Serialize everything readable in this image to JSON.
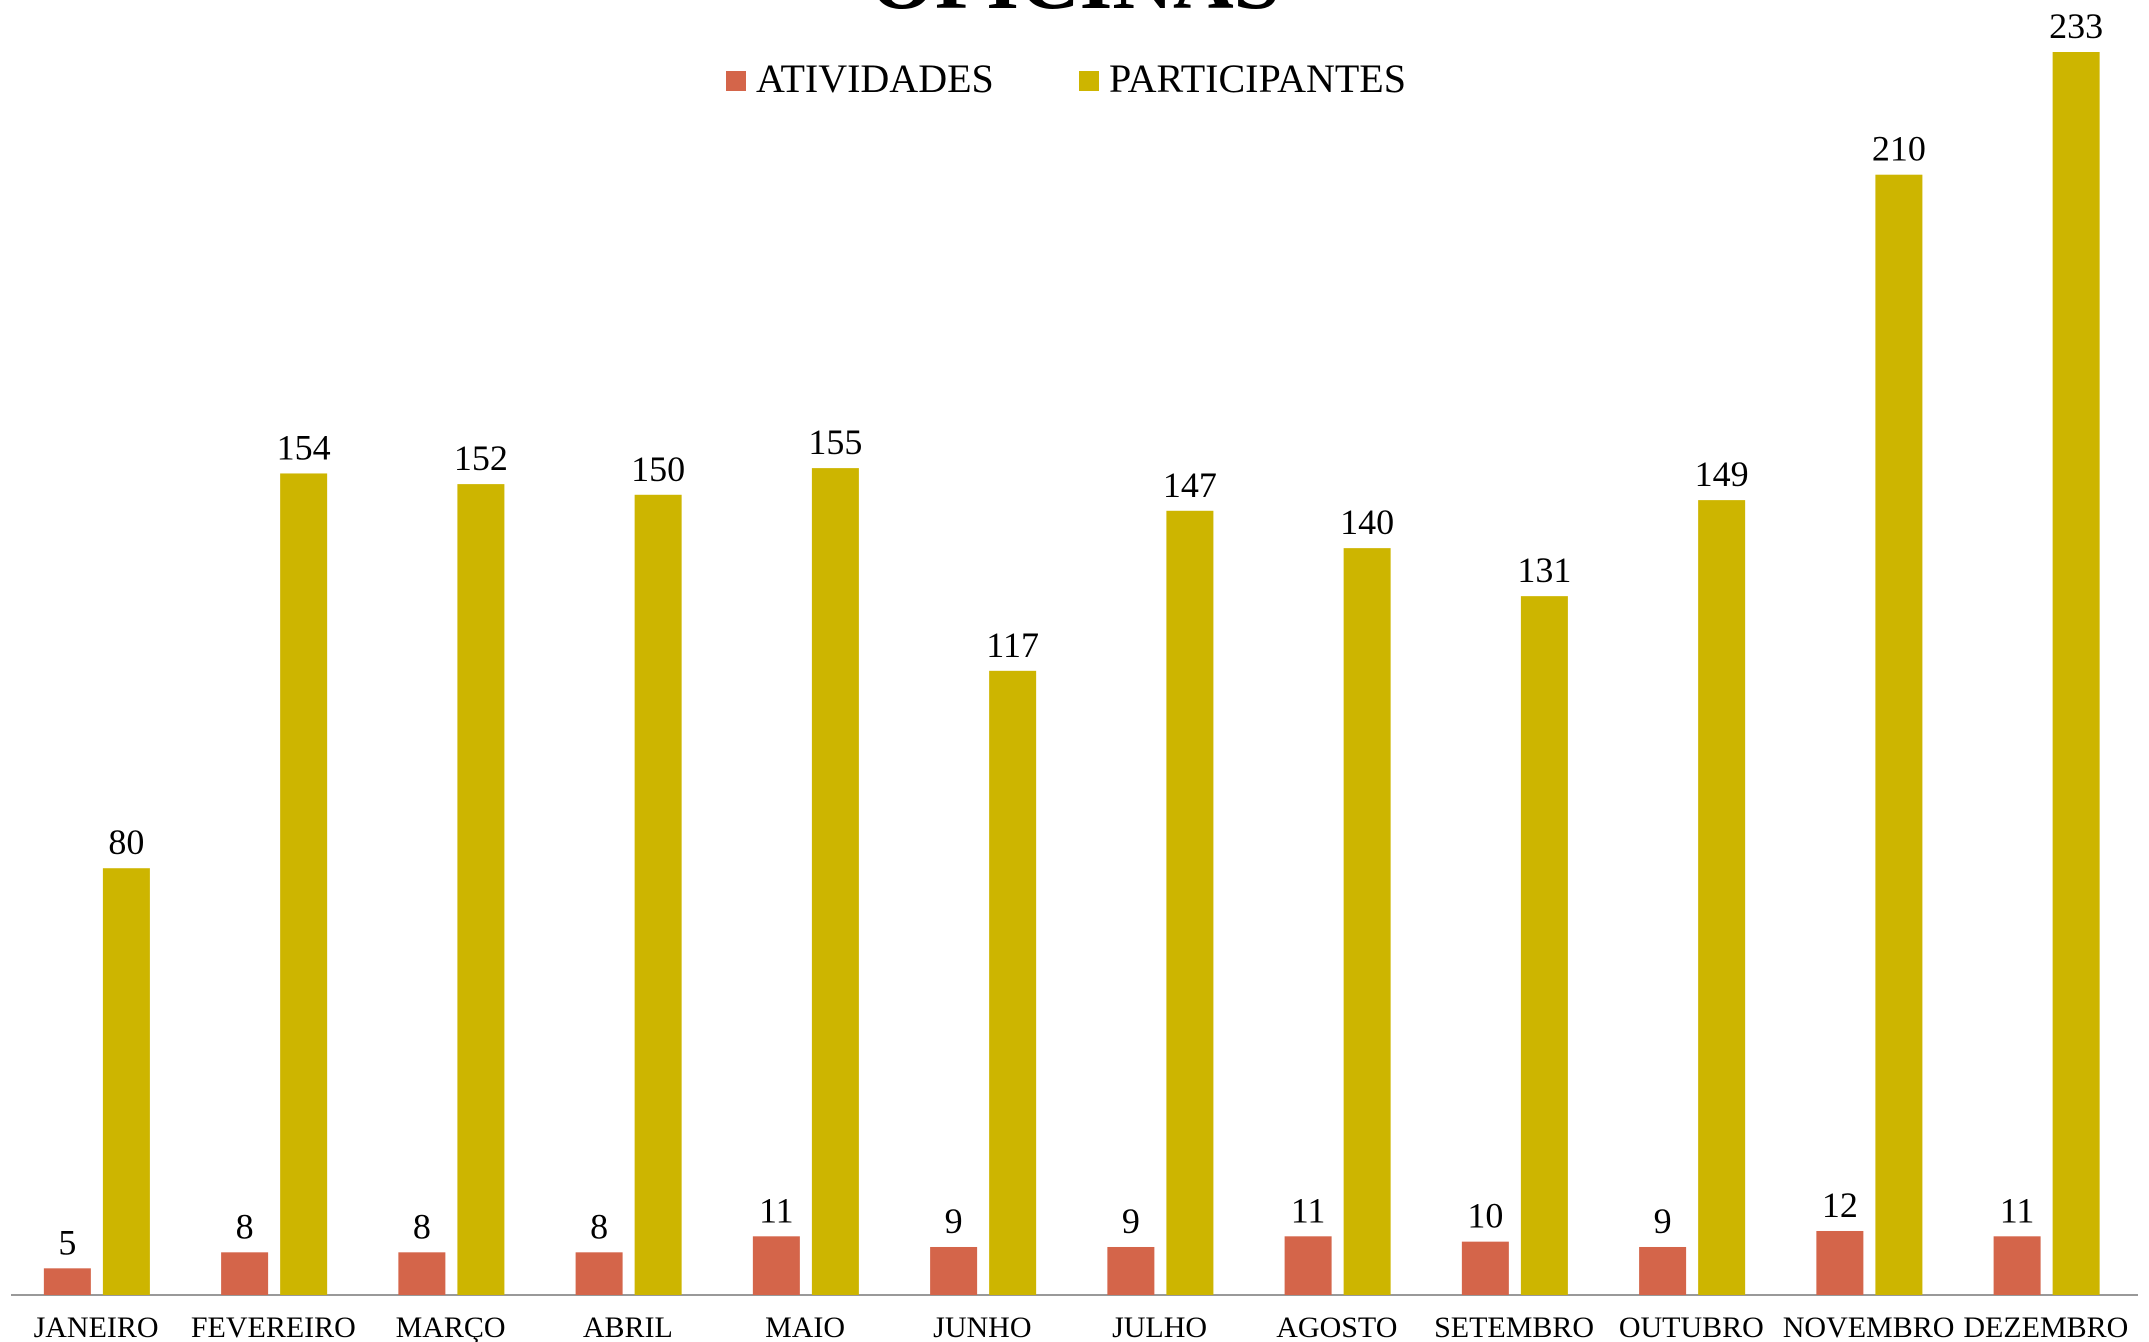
{
  "chart_data": {
    "type": "bar",
    "title": "OFICINAS",
    "categories": [
      "JANEIRO",
      "FEVEREIRO",
      "MARÇO",
      "ABRIL",
      "MAIO",
      "JUNHO",
      "JULHO",
      "AGOSTO",
      "SETEMBRO",
      "OUTUBRO",
      "NOVEMBRO",
      "DEZEMBRO"
    ],
    "series": [
      {
        "name": "ATIVIDADES",
        "color": "#d4654a",
        "values": [
          5,
          8,
          8,
          8,
          11,
          9,
          9,
          11,
          10,
          9,
          12,
          11
        ]
      },
      {
        "name": "PARTICIPANTES",
        "color": "#cdb500",
        "values": [
          80,
          154,
          152,
          150,
          155,
          117,
          147,
          140,
          131,
          149,
          210,
          233
        ]
      }
    ],
    "legend": "top"
  }
}
